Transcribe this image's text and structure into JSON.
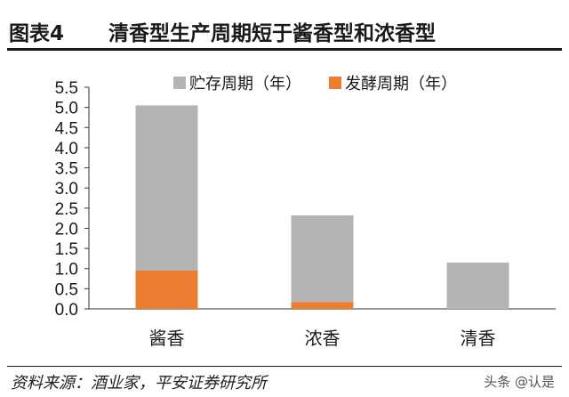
{
  "header": {
    "figure_label": "图表4",
    "title": "清香型生产周期短于酱香型和浓香型"
  },
  "footer": {
    "source": "资料来源：酒业家，平安证券研究所",
    "watermark": "头条 @认是"
  },
  "colors": {
    "storage": "#b4b4b4",
    "fermentation": "#ed7d31",
    "axis": "#333333",
    "text": "#1a1a1a"
  },
  "chart_data": {
    "type": "bar",
    "stacked": true,
    "categories": [
      "酱香",
      "浓香",
      "清香"
    ],
    "series": [
      {
        "name": "发酵周期（年）",
        "values": [
          0.95,
          0.17,
          0.0
        ]
      },
      {
        "name": "贮存周期（年）",
        "values": [
          4.1,
          2.15,
          1.15
        ]
      }
    ],
    "legend_order": [
      1,
      0
    ],
    "title": "",
    "xlabel": "",
    "ylabel": "",
    "ylim": [
      0,
      5.5
    ],
    "yticks": [
      "0.0",
      "0.5",
      "1.0",
      "1.5",
      "2.0",
      "2.5",
      "3.0",
      "3.5",
      "4.0",
      "4.5",
      "5.0",
      "5.5"
    ],
    "grid": false,
    "legend_position": "top-right"
  }
}
